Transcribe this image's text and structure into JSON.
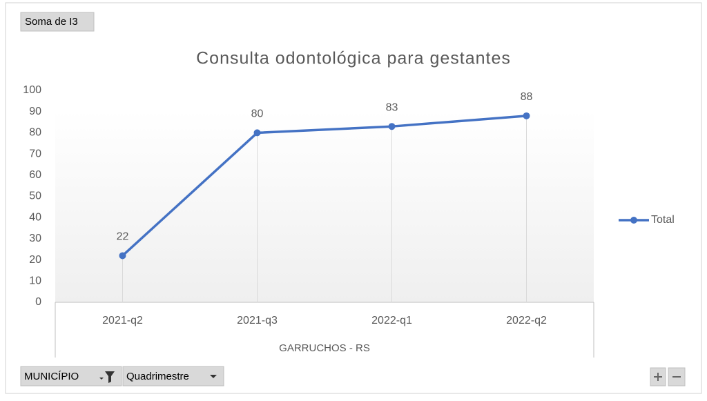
{
  "pivot": {
    "value_field": "Soma de I3",
    "filters": [
      "MUNICÍPIO",
      "Quadrimestre"
    ]
  },
  "chart_data": {
    "type": "line",
    "title": "Consulta odontológica para gestantes",
    "categories": [
      "2021-q2",
      "2021-q3",
      "2022-q1",
      "2022-q2"
    ],
    "category_group": "GARRUCHOS - RS",
    "series": [
      {
        "name": "Total",
        "color": "#4472c4",
        "values": [
          22,
          80,
          83,
          88
        ]
      }
    ],
    "ylim": [
      0,
      100
    ],
    "yticks": [
      0,
      10,
      20,
      30,
      40,
      50,
      60,
      70,
      80,
      90,
      100
    ],
    "legend": "right"
  }
}
